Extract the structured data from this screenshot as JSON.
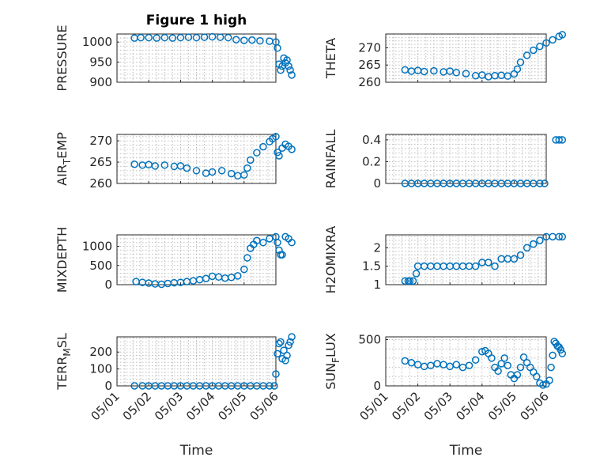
{
  "chart_data": [
    {
      "type": "scatter",
      "title": "Figure 1 high",
      "ylabel": "PRESSURE",
      "xlabel": "",
      "show_xticks": false,
      "xlim": [
        "05/01",
        "05/06"
      ],
      "ylim": [
        900,
        1020
      ],
      "yticks": [
        "900",
        "950",
        "1000"
      ],
      "ytick_values": [
        900,
        950,
        1000
      ],
      "series": [
        {
          "x": [
            0.55,
            0.75,
            1.0,
            1.25,
            1.5,
            1.75,
            2.0,
            2.25,
            2.5,
            2.75,
            3.0,
            3.25,
            3.5,
            3.75,
            4.0,
            4.25,
            4.5,
            4.8,
            5.0,
            5.05,
            5.1,
            5.15,
            5.2,
            5.25,
            5.3,
            5.35,
            5.4,
            5.45,
            5.5
          ],
          "y": [
            1010,
            1011,
            1011,
            1010,
            1011,
            1010,
            1011,
            1012,
            1011,
            1012,
            1013,
            1012,
            1011,
            1006,
            1004,
            1005,
            1003,
            1002,
            1000,
            985,
            945,
            930,
            940,
            960,
            948,
            955,
            940,
            930,
            918
          ]
        }
      ]
    },
    {
      "type": "scatter",
      "ylabel": "THETA",
      "xlabel": "",
      "show_xticks": false,
      "xlim": [
        "05/01",
        "05/06"
      ],
      "ylim": [
        260,
        274
      ],
      "yticks": [
        "260",
        "265",
        "270"
      ],
      "ytick_values": [
        260,
        265,
        270
      ],
      "series": [
        {
          "x": [
            0.6,
            0.8,
            1.0,
            1.2,
            1.5,
            1.8,
            2.0,
            2.2,
            2.5,
            2.8,
            3.0,
            3.2,
            3.4,
            3.6,
            3.8,
            4.0,
            4.1,
            4.2,
            4.4,
            4.6,
            4.8,
            5.0,
            5.2,
            5.4,
            5.5
          ],
          "y": [
            263.6,
            263.2,
            263.4,
            263.1,
            263.3,
            263.0,
            263.2,
            262.8,
            262.5,
            261.9,
            262.1,
            261.6,
            261.9,
            262.0,
            261.8,
            262.4,
            263.8,
            265.8,
            267.8,
            269.3,
            270.4,
            271.4,
            272.3,
            273.3,
            273.8
          ]
        }
      ]
    },
    {
      "type": "scatter",
      "ylabel": "AIR_TEMP",
      "ylabel_main": "AIR",
      "ylabel_sub": "T",
      "ylabel_rest": "EMP",
      "xlabel": "",
      "show_xticks": false,
      "xlim": [
        "05/01",
        "05/06"
      ],
      "ylim": [
        260,
        271.5
      ],
      "yticks": [
        "260",
        "265",
        "270"
      ],
      "ytick_values": [
        260,
        265,
        270
      ],
      "series": [
        {
          "x": [
            0.55,
            0.8,
            1.0,
            1.2,
            1.5,
            1.8,
            2.0,
            2.2,
            2.5,
            2.8,
            3.0,
            3.3,
            3.6,
            3.8,
            4.0,
            4.1,
            4.2,
            4.4,
            4.6,
            4.8,
            4.9,
            5.0,
            5.05,
            5.1,
            5.2,
            5.3,
            5.4,
            5.5
          ],
          "y": [
            264.5,
            264.3,
            264.4,
            264.1,
            264.3,
            264.0,
            264.1,
            263.6,
            263.0,
            262.4,
            262.7,
            263.0,
            262.3,
            261.8,
            262.0,
            263.6,
            265.5,
            267.2,
            268.6,
            269.8,
            270.5,
            271.0,
            267.3,
            266.5,
            268.3,
            269.2,
            268.7,
            268.0
          ]
        }
      ]
    },
    {
      "type": "scatter",
      "ylabel": "RAINFALL",
      "xlabel": "",
      "show_xticks": false,
      "xlim": [
        "05/01",
        "05/06"
      ],
      "ylim": [
        0,
        0.45
      ],
      "yticks": [
        "0",
        "0.2",
        "0.4"
      ],
      "ytick_values": [
        0,
        0.2,
        0.4
      ],
      "series": [
        {
          "x": [
            0.6,
            0.8,
            1.0,
            1.2,
            1.4,
            1.6,
            1.8,
            2.0,
            2.2,
            2.4,
            2.6,
            2.8,
            3.0,
            3.2,
            3.4,
            3.6,
            3.8,
            4.0,
            4.2,
            4.4,
            4.6,
            4.8,
            4.95,
            5.3,
            5.4,
            5.5
          ],
          "y": [
            0,
            0,
            0,
            0,
            0,
            0,
            0,
            0,
            0,
            0,
            0,
            0,
            0,
            0,
            0,
            0,
            0,
            0,
            0,
            0,
            0,
            0,
            0,
            0.4,
            0.4,
            0.4
          ]
        }
      ]
    },
    {
      "type": "scatter",
      "ylabel": "MIXDEPTH",
      "xlabel": "",
      "show_xticks": false,
      "xlim": [
        "05/01",
        "05/06"
      ],
      "ylim": [
        0,
        1300
      ],
      "yticks": [
        "0",
        "500",
        "1000"
      ],
      "ytick_values": [
        0,
        500,
        1000
      ],
      "series": [
        {
          "x": [
            0.6,
            0.8,
            1.0,
            1.2,
            1.4,
            1.6,
            1.8,
            2.0,
            2.2,
            2.4,
            2.6,
            2.8,
            3.0,
            3.2,
            3.4,
            3.6,
            3.8,
            4.0,
            4.1,
            4.2,
            4.3,
            4.4,
            4.6,
            4.8,
            5.0,
            5.05,
            5.1,
            5.15,
            5.2,
            5.3,
            5.4,
            5.5
          ],
          "y": [
            80,
            60,
            40,
            20,
            10,
            30,
            50,
            60,
            80,
            100,
            130,
            160,
            220,
            200,
            170,
            190,
            230,
            400,
            700,
            950,
            1050,
            1150,
            1100,
            1200,
            1250,
            1100,
            900,
            780,
            780,
            1250,
            1200,
            1100
          ]
        }
      ]
    },
    {
      "type": "scatter",
      "ylabel": "H2OMIXRA",
      "xlabel": "",
      "show_xticks": false,
      "xlim": [
        "05/01",
        "05/06"
      ],
      "ylim": [
        1,
        2.35
      ],
      "yticks": [
        "1",
        "1.5",
        "2"
      ],
      "ytick_values": [
        1,
        1.5,
        2
      ],
      "series": [
        {
          "x": [
            0.6,
            0.7,
            0.75,
            0.85,
            0.95,
            1.0,
            1.2,
            1.4,
            1.6,
            1.8,
            2.0,
            2.2,
            2.4,
            2.6,
            2.8,
            3.0,
            3.2,
            3.4,
            3.6,
            3.8,
            4.0,
            4.2,
            4.4,
            4.6,
            4.8,
            5.0,
            5.2,
            5.4,
            5.5
          ],
          "y": [
            1.1,
            1.1,
            1.1,
            1.1,
            1.3,
            1.5,
            1.5,
            1.5,
            1.5,
            1.5,
            1.5,
            1.5,
            1.5,
            1.5,
            1.5,
            1.6,
            1.6,
            1.5,
            1.7,
            1.7,
            1.7,
            1.8,
            2.0,
            2.1,
            2.2,
            2.3,
            2.3,
            2.3,
            2.3
          ]
        }
      ]
    },
    {
      "type": "scatter",
      "ylabel": "TERR_MSL",
      "ylabel_main": "TERR",
      "ylabel_sub": "M",
      "ylabel_rest": "SL",
      "xlabel": "Time",
      "xlim": [
        "05/01",
        "05/06"
      ],
      "ylim": [
        0,
        290
      ],
      "yticks": [
        "0",
        "100",
        "200"
      ],
      "ytick_values": [
        0,
        100,
        200
      ],
      "xticks": [
        "05/01",
        "05/02",
        "05/03",
        "05/04",
        "05/05",
        "05/06"
      ],
      "series": [
        {
          "x": [
            0.55,
            0.8,
            1.0,
            1.2,
            1.4,
            1.6,
            1.8,
            2.0,
            2.2,
            2.4,
            2.6,
            2.8,
            3.0,
            3.2,
            3.4,
            3.6,
            3.8,
            4.0,
            4.2,
            4.4,
            4.6,
            4.8,
            4.95,
            5.0,
            5.05,
            5.1,
            5.15,
            5.2,
            5.25,
            5.3,
            5.35,
            5.4,
            5.45,
            5.5
          ],
          "y": [
            0,
            0,
            0,
            0,
            0,
            0,
            0,
            0,
            0,
            0,
            0,
            0,
            0,
            0,
            0,
            0,
            0,
            0,
            0,
            0,
            0,
            0,
            0,
            70,
            190,
            250,
            260,
            160,
            210,
            150,
            180,
            240,
            260,
            290
          ]
        }
      ]
    },
    {
      "type": "scatter",
      "ylabel": "SUN_FLUX",
      "ylabel_main": "SUN",
      "ylabel_sub": "F",
      "ylabel_rest": "LUX",
      "xlabel": "Time",
      "xlim": [
        "05/01",
        "05/06"
      ],
      "ylim": [
        0,
        530
      ],
      "yticks": [
        "0",
        "500"
      ],
      "ytick_values": [
        0,
        500
      ],
      "xticks": [
        "05/01",
        "05/02",
        "05/03",
        "05/04",
        "05/05",
        "05/06"
      ],
      "series": [
        {
          "x": [
            0.6,
            0.8,
            1.0,
            1.2,
            1.4,
            1.6,
            1.8,
            2.0,
            2.2,
            2.4,
            2.6,
            2.8,
            3.0,
            3.1,
            3.2,
            3.3,
            3.4,
            3.5,
            3.6,
            3.7,
            3.8,
            3.9,
            4.0,
            4.1,
            4.2,
            4.3,
            4.4,
            4.5,
            4.6,
            4.7,
            4.8,
            4.9,
            5.0,
            5.1,
            5.15,
            5.2,
            5.25,
            5.3,
            5.35,
            5.4,
            5.45,
            5.5
          ],
          "y": [
            270,
            250,
            230,
            210,
            220,
            240,
            230,
            210,
            230,
            200,
            220,
            280,
            370,
            380,
            350,
            300,
            200,
            160,
            240,
            300,
            220,
            120,
            80,
            120,
            200,
            310,
            250,
            200,
            150,
            100,
            30,
            10,
            20,
            60,
            200,
            330,
            480,
            460,
            430,
            420,
            390,
            350
          ]
        }
      ]
    }
  ]
}
